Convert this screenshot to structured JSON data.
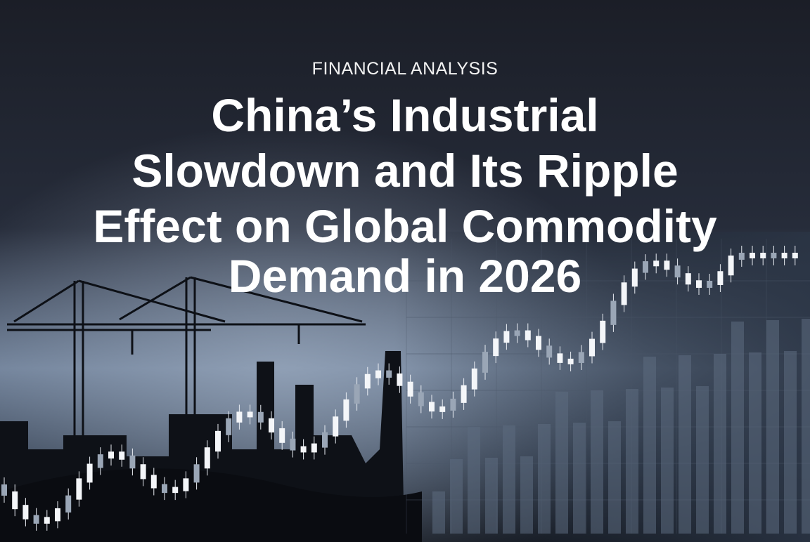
{
  "header": {
    "kicker": "FINANCIAL ANALYSIS",
    "title_lines": [
      "China’s Industrial",
      "Slowdown and Its Ripple",
      "Effect on Global Commodity",
      "Demand in 2026"
    ]
  }
}
